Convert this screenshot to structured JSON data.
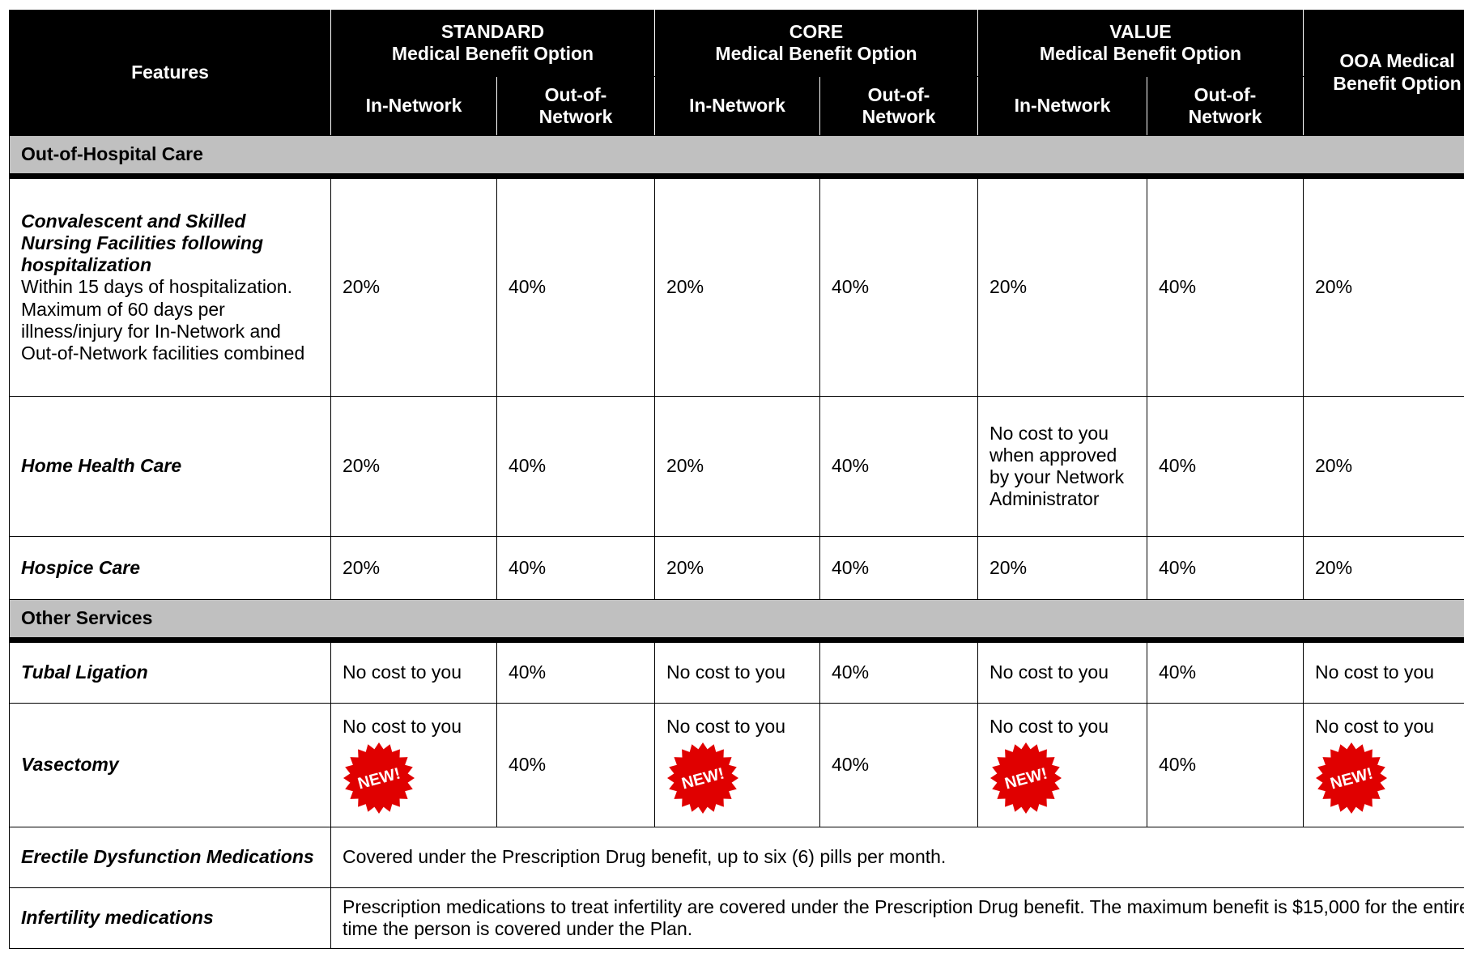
{
  "header": {
    "features": "Features",
    "groups": [
      {
        "name": "STANDARD",
        "sub": "Medical Benefit Option"
      },
      {
        "name": "CORE",
        "sub": "Medical Benefit Option"
      },
      {
        "name": "VALUE",
        "sub": "Medical Benefit Option"
      }
    ],
    "ooa": "OOA Medical Benefit Option",
    "columns": [
      "In-Network",
      "Out-of-Network",
      "In-Network",
      "Out-of-Network",
      "In-Network",
      "Out-of-Network"
    ]
  },
  "sections": [
    {
      "title": "Out-of-Hospital Care",
      "rows": [
        {
          "feature": "Convalescent and Skilled Nursing Facilities following hospitalization",
          "note": "Within 15 days of hospitalization.  Maximum of 60 days per illness/injury for In-Network and Out-of-Network facilities combined",
          "cells": [
            "20%",
            "40%",
            "20%",
            "40%",
            "20%",
            "40%",
            "20%"
          ]
        },
        {
          "feature": "Home Health Care",
          "cells": [
            "20%",
            "40%",
            "20%",
            "40%",
            "No cost to you when approved by your Network Administrator",
            "40%",
            "20%"
          ]
        },
        {
          "feature": "Hospice Care",
          "cells": [
            "20%",
            "40%",
            "20%",
            "40%",
            "20%",
            "40%",
            "20%"
          ]
        }
      ]
    },
    {
      "title": "Other Services",
      "rows": [
        {
          "feature": "Tubal Ligation",
          "cells": [
            "No cost to you",
            "40%",
            "No cost to you",
            "40%",
            "No cost to you",
            "40%",
            "No cost to you"
          ]
        },
        {
          "feature": "Vasectomy",
          "cells": [
            {
              "text": "No cost to you",
              "badge": "NEW!"
            },
            {
              "text": "40%"
            },
            {
              "text": "No cost to you",
              "badge": "NEW!"
            },
            {
              "text": "40%"
            },
            {
              "text": "No cost to you",
              "badge": "NEW!"
            },
            {
              "text": "40%"
            },
            {
              "text": "No cost to you",
              "badge": "NEW!"
            }
          ]
        },
        {
          "feature": "Erectile Dysfunction Medications",
          "span": "Covered under the Prescription Drug benefit, up to six (6) pills per month."
        },
        {
          "feature": "Infertility medications",
          "span": "Prescription medications to treat infertility are covered under the Prescription Drug benefit. The maximum benefit is $15,000 for the entire time the person is covered under the Plan."
        }
      ]
    }
  ]
}
